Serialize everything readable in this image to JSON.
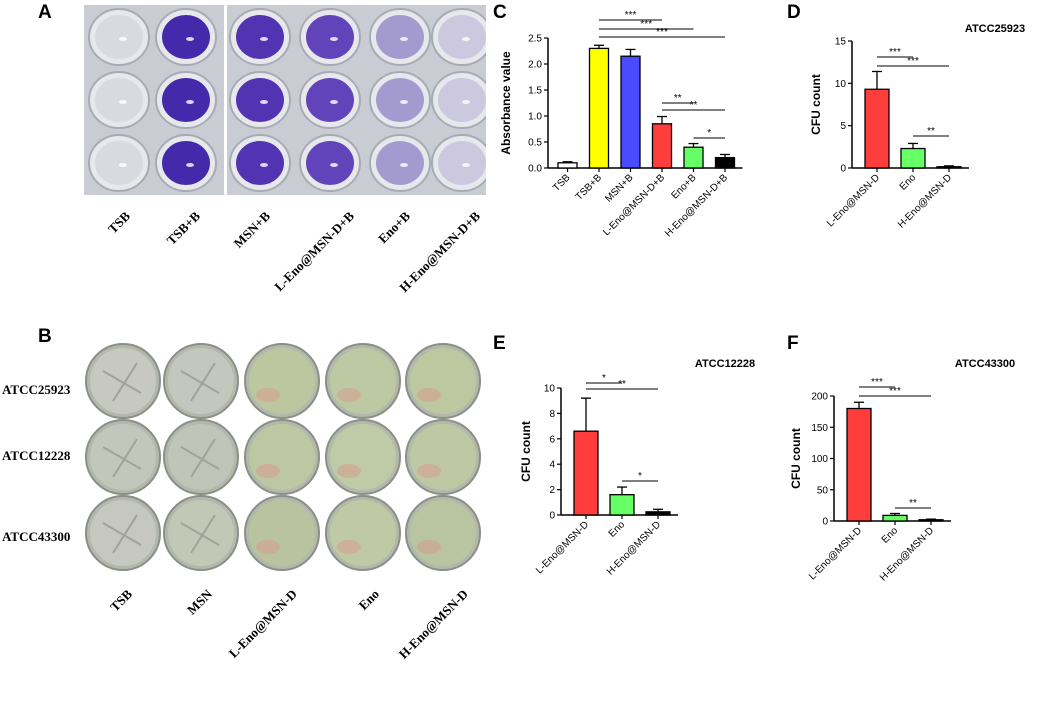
{
  "panels": {
    "A": "A",
    "B": "B",
    "C": "C",
    "D": "D",
    "E": "E",
    "F": "F"
  },
  "panelA": {
    "well_labels": [
      "TSB",
      "TSB+B",
      "MSN+B",
      "L-Eno@MSN-D+B",
      "Eno+B",
      "H-Eno@MSN-D+B"
    ],
    "well_colors": [
      "#d8d9df",
      "#3b1fa8",
      "#4a2ab0",
      "#5a3bb6",
      "#9f96cf",
      "#c9c6de"
    ]
  },
  "panelB": {
    "row_labels": [
      "ATCC25923",
      "ATCC12228",
      "ATCC43300"
    ],
    "col_labels": [
      "TSB",
      "MSN",
      "L-Eno@MSN-D",
      "Eno",
      "H-Eno@MSN-D"
    ]
  },
  "chart_data": [
    {
      "id": "C",
      "type": "bar",
      "title": "",
      "ylabel": "Absorbance value",
      "ylim": [
        0,
        2.5
      ],
      "yticks": [
        "0.0",
        "0.5",
        "1.0",
        "1.5",
        "2.0",
        "2.5"
      ],
      "categories": [
        "TSB",
        "TSB+B",
        "MSN+B",
        "L-Eno@MSN-D+B",
        "Eno+B",
        "H-Eno@MSN-D+B"
      ],
      "values": [
        0.1,
        2.3,
        2.15,
        0.85,
        0.4,
        0.2
      ],
      "errors": [
        0.02,
        0.06,
        0.13,
        0.14,
        0.07,
        0.06
      ],
      "colors": [
        "#ffffff",
        "#ffff00",
        "#4a4aff",
        "#ff3d3d",
        "#66ff66",
        "#000000"
      ],
      "significance": [
        {
          "from": 1,
          "to": 3,
          "label": "***"
        },
        {
          "from": 1,
          "to": 4,
          "label": "***"
        },
        {
          "from": 1,
          "to": 5,
          "label": "***"
        },
        {
          "from": 3,
          "to": 4,
          "label": "**"
        },
        {
          "from": 3,
          "to": 5,
          "label": "**"
        },
        {
          "from": 4,
          "to": 5,
          "label": "*"
        }
      ]
    },
    {
      "id": "D",
      "type": "bar",
      "title": "ATCC25923",
      "ylabel": "CFU count",
      "ylim": [
        0,
        15
      ],
      "yticks": [
        "0",
        "5",
        "10",
        "15"
      ],
      "categories": [
        "L-Eno@MSN-D",
        "Eno",
        "H-Eno@MSN-D"
      ],
      "values": [
        9.3,
        2.3,
        0.15
      ],
      "errors": [
        2.1,
        0.6,
        0.1
      ],
      "colors": [
        "#ff3d3d",
        "#66ff66",
        "#000000"
      ],
      "significance": [
        {
          "from": 0,
          "to": 1,
          "label": "***"
        },
        {
          "from": 0,
          "to": 2,
          "label": "***"
        },
        {
          "from": 1,
          "to": 2,
          "label": "**"
        }
      ]
    },
    {
      "id": "E",
      "type": "bar",
      "title": "ATCC12228",
      "ylabel": "CFU count",
      "ylim": [
        0,
        10
      ],
      "yticks": [
        "0",
        "2",
        "4",
        "6",
        "8",
        "10"
      ],
      "categories": [
        "L-Eno@MSN-D",
        "Eno",
        "H-Eno@MSN-D"
      ],
      "values": [
        6.6,
        1.6,
        0.25
      ],
      "errors": [
        2.6,
        0.6,
        0.2
      ],
      "colors": [
        "#ff3d3d",
        "#66ff66",
        "#000000"
      ],
      "significance": [
        {
          "from": 0,
          "to": 1,
          "label": "*"
        },
        {
          "from": 0,
          "to": 2,
          "label": "**"
        },
        {
          "from": 1,
          "to": 2,
          "label": "*"
        }
      ]
    },
    {
      "id": "F",
      "type": "bar",
      "title": "ATCC43300",
      "ylabel": "CFU count",
      "ylim": [
        0,
        200
      ],
      "yticks": [
        "0",
        "50",
        "100",
        "150",
        "200"
      ],
      "categories": [
        "L-Eno@MSN-D",
        "Eno",
        "H-Eno@MSN-D"
      ],
      "values": [
        180,
        9,
        2
      ],
      "errors": [
        10,
        3,
        1
      ],
      "colors": [
        "#ff3d3d",
        "#66ff66",
        "#000000"
      ],
      "significance": [
        {
          "from": 0,
          "to": 1,
          "label": "***"
        },
        {
          "from": 0,
          "to": 2,
          "label": "***"
        },
        {
          "from": 1,
          "to": 2,
          "label": "**"
        }
      ]
    }
  ]
}
